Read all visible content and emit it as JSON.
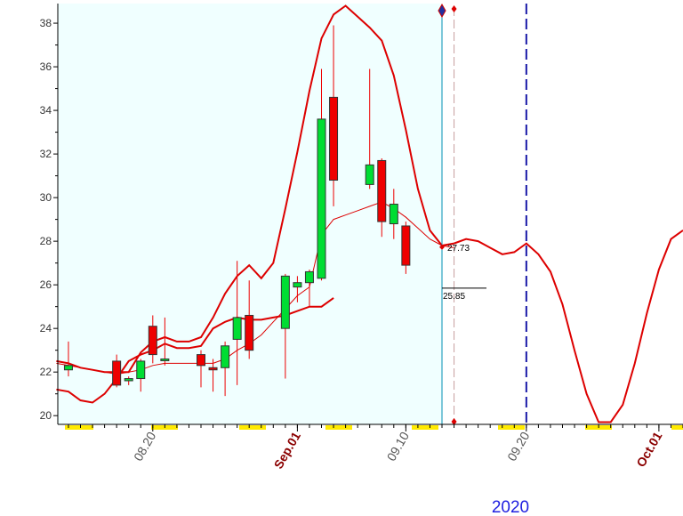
{
  "chart_data": {
    "type": "candlestick",
    "year_label": "2020",
    "ylim": [
      19.6,
      38.9
    ],
    "y_ticks": [
      20,
      22,
      24,
      26,
      28,
      30,
      32,
      34,
      36,
      38
    ],
    "x_labels": [
      {
        "text": "08.20",
        "day": 20,
        "color": "#555555",
        "bold": false
      },
      {
        "text": "Sep.01",
        "day": 32,
        "color": "#8b0000",
        "bold": true
      },
      {
        "text": "09.10",
        "day": 41,
        "color": "#555555",
        "bold": false
      },
      {
        "text": "09.20",
        "day": 51,
        "color": "#555555",
        "bold": false
      },
      {
        "text": "Oct.01",
        "day": 62,
        "color": "#8b0000",
        "bold": true
      }
    ],
    "candles": [
      {
        "day": 13,
        "open": 22.1,
        "high": 23.4,
        "low": 21.8,
        "close": 22.3
      },
      {
        "day": 17,
        "open": 22.5,
        "high": 22.8,
        "low": 21.3,
        "close": 21.4
      },
      {
        "day": 18,
        "open": 21.6,
        "high": 21.8,
        "low": 21.4,
        "close": 21.7
      },
      {
        "day": 19,
        "open": 21.7,
        "high": 22.6,
        "low": 21.1,
        "close": 22.5
      },
      {
        "day": 20,
        "open": 24.1,
        "high": 24.6,
        "low": 22.4,
        "close": 22.8
      },
      {
        "day": 21,
        "open": 22.6,
        "high": 24.5,
        "low": 22.3,
        "close": 22.6
      },
      {
        "day": 24,
        "open": 22.8,
        "high": 23.0,
        "low": 21.3,
        "close": 22.3
      },
      {
        "day": 25,
        "open": 22.2,
        "high": 22.6,
        "low": 21.1,
        "close": 22.1
      },
      {
        "day": 26,
        "open": 22.2,
        "high": 23.4,
        "low": 20.9,
        "close": 23.2
      },
      {
        "day": 27,
        "open": 23.5,
        "high": 27.1,
        "low": 21.4,
        "close": 24.5
      },
      {
        "day": 28,
        "open": 24.6,
        "high": 26.2,
        "low": 22.6,
        "close": 23.0
      },
      {
        "day": 31,
        "open": 24.0,
        "high": 26.5,
        "low": 21.7,
        "close": 26.4
      },
      {
        "day": 32,
        "open": 25.9,
        "high": 26.4,
        "low": 25.2,
        "close": 26.1
      },
      {
        "day": 33,
        "open": 26.1,
        "high": 26.7,
        "low": 25.0,
        "close": 26.6
      },
      {
        "day": 34,
        "open": 26.3,
        "high": 35.9,
        "low": 26.2,
        "close": 33.6
      },
      {
        "day": 35,
        "open": 34.6,
        "high": 37.9,
        "low": 29.6,
        "close": 30.8
      },
      {
        "day": 38,
        "open": 30.6,
        "high": 35.9,
        "low": 30.4,
        "close": 31.5
      },
      {
        "day": 39,
        "open": 31.7,
        "high": 31.8,
        "low": 28.2,
        "close": 28.9
      },
      {
        "day": 40,
        "open": 28.8,
        "high": 30.4,
        "low": 28.1,
        "close": 29.7
      },
      {
        "day": 41,
        "open": 28.7,
        "high": 28.9,
        "low": 26.5,
        "close": 26.9
      }
    ],
    "upper_band": [
      [
        12,
        22.5
      ],
      [
        13,
        22.4
      ],
      [
        14,
        22.2
      ],
      [
        15,
        22.1
      ],
      [
        16,
        22.0
      ],
      [
        17,
        22.0
      ],
      [
        18,
        22.0
      ],
      [
        19,
        22.9
      ],
      [
        20,
        23.4
      ],
      [
        21,
        23.6
      ],
      [
        22,
        23.4
      ],
      [
        23,
        23.4
      ],
      [
        24,
        23.6
      ],
      [
        25,
        24.5
      ],
      [
        26,
        25.6
      ],
      [
        27,
        26.4
      ],
      [
        28,
        26.9
      ],
      [
        29,
        26.3
      ],
      [
        30,
        27.0
      ],
      [
        31,
        29.5
      ],
      [
        32,
        32.1
      ],
      [
        33,
        34.9
      ],
      [
        34,
        37.3
      ],
      [
        35,
        38.4
      ],
      [
        36,
        38.8
      ],
      [
        37,
        38.3
      ],
      [
        38,
        37.8
      ],
      [
        39,
        37.2
      ],
      [
        40,
        35.6
      ],
      [
        41,
        33.1
      ],
      [
        42,
        30.4
      ],
      [
        43,
        28.5
      ],
      [
        44,
        27.8
      ],
      [
        45,
        27.9
      ],
      [
        46,
        28.1
      ],
      [
        47,
        28.0
      ],
      [
        48,
        27.7
      ],
      [
        49,
        27.4
      ],
      [
        50,
        27.5
      ],
      [
        51,
        27.9
      ],
      [
        52,
        27.4
      ],
      [
        53,
        26.6
      ],
      [
        54,
        25.1
      ],
      [
        55,
        23.0
      ],
      [
        56,
        21.0
      ],
      [
        57,
        19.7
      ],
      [
        58,
        19.7
      ],
      [
        59,
        20.5
      ],
      [
        60,
        22.4
      ],
      [
        61,
        24.7
      ],
      [
        62,
        26.7
      ],
      [
        63,
        28.1
      ],
      [
        64,
        28.5
      ]
    ],
    "lower_band": [
      [
        12,
        21.2
      ],
      [
        13,
        21.1
      ],
      [
        14,
        20.7
      ],
      [
        15,
        20.6
      ],
      [
        16,
        21.0
      ],
      [
        17,
        21.7
      ],
      [
        18,
        22.5
      ],
      [
        19,
        22.8
      ],
      [
        20,
        23.0
      ],
      [
        21,
        23.3
      ],
      [
        22,
        23.1
      ],
      [
        23,
        23.1
      ],
      [
        24,
        23.2
      ],
      [
        25,
        24.0
      ],
      [
        26,
        24.3
      ],
      [
        27,
        24.5
      ],
      [
        28,
        24.4
      ],
      [
        29,
        24.4
      ],
      [
        30,
        24.5
      ],
      [
        31,
        24.6
      ],
      [
        32,
        24.8
      ],
      [
        33,
        25.0
      ],
      [
        34,
        25.0
      ],
      [
        35,
        25.4
      ]
    ],
    "middle_line": [
      [
        12,
        22.4
      ],
      [
        13,
        22.3
      ],
      [
        14,
        22.2
      ],
      [
        15,
        22.1
      ],
      [
        16,
        22.0
      ],
      [
        17,
        21.9
      ],
      [
        18,
        22.0
      ],
      [
        19,
        22.1
      ],
      [
        20,
        22.3
      ],
      [
        21,
        22.4
      ],
      [
        22,
        22.4
      ],
      [
        23,
        22.4
      ],
      [
        24,
        22.4
      ],
      [
        25,
        22.4
      ],
      [
        26,
        22.6
      ],
      [
        27,
        23.0
      ],
      [
        28,
        23.3
      ],
      [
        29,
        23.7
      ],
      [
        30,
        24.3
      ],
      [
        31,
        24.9
      ],
      [
        32,
        25.5
      ],
      [
        33,
        25.9
      ],
      [
        34,
        28.3
      ],
      [
        35,
        29.0
      ],
      [
        36,
        29.2
      ],
      [
        37,
        29.4
      ],
      [
        38,
        29.6
      ],
      [
        39,
        29.8
      ],
      [
        40,
        29.5
      ],
      [
        41,
        29.1
      ],
      [
        42,
        28.6
      ],
      [
        43,
        28.1
      ],
      [
        44,
        27.8
      ],
      [
        45,
        27.7
      ]
    ],
    "annotations": [
      {
        "text": "27.73",
        "day": 44,
        "value": 27.73
      },
      {
        "text": "25.85",
        "day": 44,
        "value": 25.85
      }
    ],
    "markers": {
      "current_day": 44,
      "dashed_gray_day": 45,
      "dashed_blue_day": 51
    },
    "colors": {
      "up_candle": "#00dd33",
      "down_candle": "#ee0000",
      "band": "#dd0000",
      "history_background": "#f0ffff",
      "current_line": "#008fb3",
      "blue_dashed": "#1a1aa8",
      "axis_highlight": "#ffea00"
    }
  }
}
